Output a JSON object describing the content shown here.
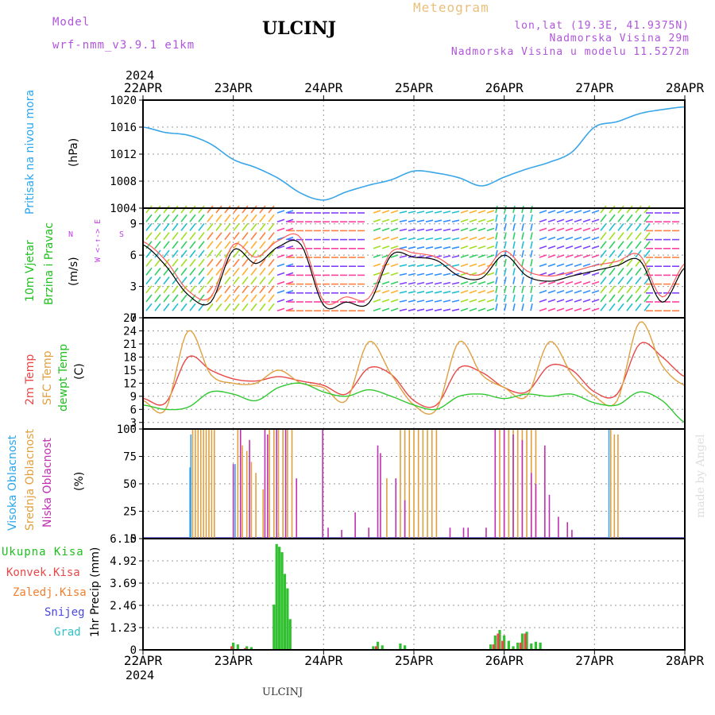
{
  "header": {
    "model_label": "Model",
    "model_name": "wrf-nmm_v3.9.1  e1km",
    "station": "ULCINJ",
    "product": "Meteogram",
    "coords": "lon,lat (19.3E, 41.9375N)",
    "elevation": "Nadmorska Visina 29m",
    "model_elevation": "Nadmorska Visina u modelu 11.5272m"
  },
  "footer": {
    "station": "ULCINJ",
    "watermark": "made by Angel"
  },
  "time_axis": {
    "year": "2024",
    "labels": [
      "22APR",
      "23APR",
      "24APR",
      "25APR",
      "26APR",
      "27APR",
      "28APR"
    ]
  },
  "colors": {
    "pressure": "#3aa6e8",
    "temp2m": "#e84848",
    "sfc": "#e0a040",
    "dew": "#30c830",
    "high_cloud": "#3aa6e8",
    "mid_cloud": "#e0a040",
    "low_cloud": "#c030b0",
    "total_precip": "#30c030",
    "conv_precip": "#e84848",
    "frozen": "#f08030",
    "snow": "#4848e0",
    "grad": "#30c0c0"
  },
  "panel_labels": {
    "pressure": {
      "title": "Pritisak na nivou mora",
      "unit": "(hPa)"
    },
    "wind": {
      "title1": "10m Vjetar",
      "title2": "Brzina i Pravac",
      "unit": "(m/s)",
      "rose": "W  <-↑->  E",
      "rose_n": "N",
      "rose_s": "S"
    },
    "temp": {
      "t1": "2m Temp",
      "t2": "SFC Temp",
      "t3": "dewpt Temp",
      "unit": "(C)"
    },
    "cloud": {
      "c1": "Visoka Oblacnost",
      "c2": "Srednja Oblacnost",
      "c3": "Niska Oblacnost",
      "unit": "(%)"
    },
    "precip": {
      "p1": "Ukupna Kisa",
      "p2": "Konvek.Kisa",
      "p3": "Zaledj.Kisa",
      "p4": "Snijeg",
      "p5": "Grad",
      "unit": "1hr Precip (mm)"
    }
  },
  "chart_data": [
    {
      "type": "line",
      "title": "Pritisak na nivou mora",
      "ylabel": "(hPa)",
      "ylim": [
        1004,
        1020
      ],
      "yticks": [
        "1004",
        "1008",
        "1012",
        "1016",
        "1020"
      ],
      "x": [
        "22APR 00",
        "22APR 06",
        "22APR 12",
        "22APR 18",
        "23APR 00",
        "23APR 06",
        "23APR 12",
        "23APR 18",
        "24APR 00",
        "24APR 06",
        "24APR 12",
        "24APR 18",
        "25APR 00",
        "25APR 06",
        "25APR 12",
        "25APR 18",
        "26APR 00",
        "26APR 06",
        "26APR 12",
        "26APR 18",
        "27APR 00",
        "27APR 06",
        "27APR 12",
        "27APR 18",
        "28APR 00"
      ],
      "series": [
        {
          "values": [
            1016,
            1015.2,
            1014.8,
            1013.5,
            1011.2,
            1010.0,
            1008.4,
            1006.2,
            1005.2,
            1006.4,
            1007.4,
            1008.2,
            1009.5,
            1009.2,
            1008.5,
            1007.3,
            1008.6,
            1009.8,
            1010.8,
            1012.3,
            1016.0,
            1016.8,
            1018.0,
            1018.6,
            1019.0
          ]
        }
      ]
    },
    {
      "type": "line",
      "title": "10m Vjetar Brzina i Pravac",
      "ylabel": "(m/s)",
      "ylim": [
        0,
        10.5
      ],
      "yticks": [
        "0",
        "3",
        "6",
        "9"
      ],
      "x": [
        "22APR 00",
        "22APR 06",
        "22APR 12",
        "22APR 18",
        "23APR 00",
        "23APR 06",
        "23APR 12",
        "23APR 18",
        "24APR 00",
        "24APR 06",
        "24APR 12",
        "24APR 18",
        "25APR 00",
        "25APR 06",
        "25APR 12",
        "25APR 18",
        "26APR 00",
        "26APR 06",
        "26APR 12",
        "26APR 18",
        "27APR 00",
        "27APR 06",
        "27APR 12",
        "27APR 18",
        "28APR 00"
      ],
      "series": [
        {
          "values": [
            7.0,
            5.0,
            2.2,
            1.5,
            6.5,
            5.2,
            6.8,
            7.0,
            1.2,
            1.5,
            1.4,
            6.0,
            5.8,
            5.5,
            4.0,
            3.8,
            6.0,
            4.0,
            3.5,
            4.0,
            4.5,
            5.0,
            5.5,
            1.5,
            4.8
          ]
        },
        {
          "values": [
            7.3,
            5.5,
            2.6,
            2.0,
            7.0,
            5.8,
            7.4,
            7.6,
            1.6,
            2.0,
            1.9,
            6.3,
            6.2,
            5.8,
            4.5,
            4.2,
            6.4,
            4.5,
            4.0,
            4.4,
            5.0,
            5.4,
            6.0,
            2.0,
            5.2
          ]
        }
      ]
    },
    {
      "type": "line",
      "ylabel": "(C)",
      "ylim": [
        1.5,
        27
      ],
      "yticks": [
        "3",
        "6",
        "9",
        "12",
        "15",
        "18",
        "21",
        "24",
        "27"
      ],
      "x": [
        "22APR 00",
        "22APR 06",
        "22APR 12",
        "22APR 18",
        "23APR 00",
        "23APR 06",
        "23APR 12",
        "23APR 18",
        "24APR 00",
        "24APR 06",
        "24APR 12",
        "24APR 18",
        "25APR 00",
        "25APR 06",
        "25APR 12",
        "25APR 18",
        "26APR 00",
        "26APR 06",
        "26APR 12",
        "26APR 18",
        "27APR 00",
        "27APR 06",
        "27APR 12",
        "27APR 18",
        "28APR 00"
      ],
      "series": [
        {
          "name": "2m Temp",
          "values": [
            8.5,
            7.5,
            18.0,
            15.0,
            13.0,
            12.5,
            13.5,
            12.5,
            11.5,
            9.5,
            15.5,
            14.0,
            8.0,
            7.0,
            15.5,
            14.5,
            11.0,
            10.0,
            16.0,
            15.0,
            10.0,
            9.5,
            21.0,
            18.0,
            13.5
          ]
        },
        {
          "name": "SFC Temp",
          "values": [
            8.0,
            6.0,
            24.0,
            14.0,
            12.0,
            12.0,
            15.0,
            12.0,
            11.0,
            8.0,
            21.5,
            14.0,
            7.0,
            6.0,
            21.5,
            14.0,
            11.0,
            9.0,
            21.5,
            14.0,
            9.0,
            8.0,
            26.0,
            16.0,
            11.5
          ]
        },
        {
          "name": "dewpt Temp",
          "values": [
            7.0,
            6.0,
            6.5,
            10.0,
            9.5,
            8.0,
            11.0,
            12.0,
            10.0,
            9.0,
            10.5,
            9.0,
            7.0,
            6.0,
            9.0,
            9.5,
            8.5,
            9.5,
            9.0,
            9.5,
            7.5,
            7.0,
            10.0,
            8.0,
            3.0
          ]
        }
      ]
    },
    {
      "type": "bar",
      "ylabel": "(%)",
      "ylim": [
        0,
        100
      ],
      "yticks": [
        "0",
        "25",
        "50",
        "75",
        "100"
      ],
      "series": [
        {
          "name": "Visoka Oblacnost",
          "x": [
            0.52,
            0.53,
            1.02,
            1.5,
            5.16
          ],
          "values": [
            65,
            95,
            68,
            5,
            100
          ]
        },
        {
          "name": "Srednja Oblacnost",
          "x": [
            0.55,
            0.58,
            0.61,
            0.64,
            0.67,
            0.7,
            0.73,
            0.76,
            0.79,
            1.05,
            1.1,
            1.15,
            1.2,
            1.25,
            1.33,
            1.4,
            1.45,
            1.5,
            1.55,
            1.6,
            1.65,
            2.7,
            2.85,
            2.9,
            2.95,
            3.0,
            3.05,
            3.1,
            3.15,
            3.2,
            3.25,
            3.95,
            4.0,
            4.05,
            4.1,
            4.15,
            4.2,
            4.25,
            4.3,
            4.35,
            5.18,
            5.22,
            5.26
          ],
          "values": [
            100,
            100,
            100,
            100,
            100,
            100,
            100,
            100,
            100,
            100,
            85,
            80,
            70,
            60,
            45,
            100,
            100,
            100,
            100,
            100,
            100,
            55,
            100,
            100,
            100,
            100,
            100,
            100,
            100,
            100,
            100,
            100,
            100,
            100,
            100,
            100,
            100,
            100,
            100,
            100,
            100,
            95,
            95
          ]
        },
        {
          "name": "Niska Oblacnost",
          "x": [
            1.0,
            1.08,
            1.18,
            1.35,
            1.38,
            1.48,
            1.58,
            1.7,
            1.99,
            2.05,
            2.2,
            2.35,
            2.5,
            2.6,
            2.63,
            2.8,
            2.9,
            3.4,
            3.55,
            3.6,
            3.8,
            3.9,
            4.0,
            4.1,
            4.2,
            4.3,
            4.35,
            4.45,
            4.5,
            4.6,
            4.7,
            4.75
          ],
          "values": [
            68,
            100,
            90,
            100,
            95,
            100,
            100,
            55,
            100,
            10,
            8,
            24,
            10,
            85,
            78,
            55,
            35,
            10,
            10,
            10,
            10,
            100,
            100,
            95,
            90,
            60,
            50,
            85,
            40,
            20,
            15,
            8
          ]
        }
      ]
    },
    {
      "type": "bar",
      "ylabel": "1hr Precip (mm)",
      "ylim": [
        0,
        6.15
      ],
      "yticks": [
        "0",
        "1.23",
        "2.46",
        "3.69",
        "4.92",
        "6.15"
      ],
      "series": [
        {
          "name": "Ukupna Kisa",
          "x": [
            1.0,
            1.05,
            1.15,
            1.2,
            1.45,
            1.48,
            1.51,
            1.54,
            1.57,
            1.6,
            1.63,
            2.55,
            2.6,
            2.65,
            2.85,
            2.9,
            3.85,
            3.9,
            3.95,
            4.0,
            4.05,
            4.1,
            4.15,
            4.2,
            4.25,
            4.3,
            4.35,
            4.4
          ],
          "values": [
            0.4,
            0.3,
            0.2,
            0.15,
            2.5,
            5.85,
            5.7,
            5.4,
            4.2,
            3.4,
            1.7,
            0.2,
            0.45,
            0.25,
            0.35,
            0.25,
            0.3,
            0.8,
            1.1,
            0.8,
            0.5,
            0.2,
            0.4,
            0.9,
            1.0,
            0.35,
            0.45,
            0.4
          ]
        },
        {
          "name": "Konvek.Kisa",
          "x": [
            1.0,
            1.15,
            2.6,
            3.9,
            3.95,
            4.0,
            4.2,
            4.25
          ],
          "values": [
            0.2,
            0.1,
            0.2,
            0.3,
            0.9,
            0.5,
            0.4,
            0.9
          ]
        }
      ]
    }
  ]
}
